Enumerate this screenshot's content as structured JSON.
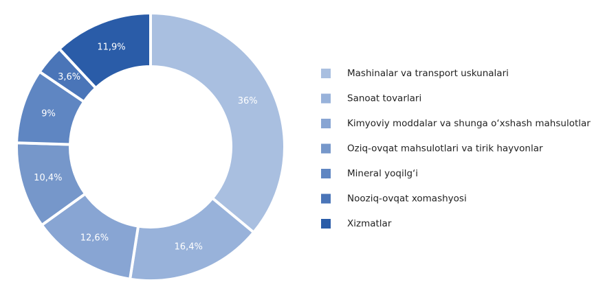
{
  "chart_data": {
    "type": "donut",
    "categories": [
      "Mashinalar va transport uskunalari",
      "Sanoat tovarlari",
      "Kimyoviy moddalar va shunga o‘xshash mahsulotlar",
      "Oziq-ovqat mahsulotlari va tirik hayvonlar",
      "Mineral yoqilg‘i",
      "Nooziq-ovqat xomashyosi",
      "Xizmatlar"
    ],
    "values": [
      36,
      16.4,
      12.6,
      10.4,
      9,
      3.6,
      11.9
    ],
    "value_labels": [
      "36%",
      "16,4%",
      "12,6%",
      "10,4%",
      "9%",
      "3,6%",
      "11,9%"
    ],
    "colors": [
      "#a9bfe0",
      "#98b2da",
      "#88a5d3",
      "#7697ca",
      "#5f86c2",
      "#4a75b8",
      "#2a5ca8"
    ],
    "legend": "right"
  }
}
